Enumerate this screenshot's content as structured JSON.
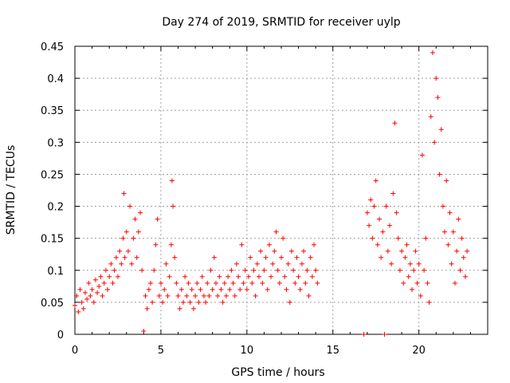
{
  "chart_data": {
    "type": "scatter",
    "title": "Day 274 of 2019, SRMTID for receiver uylp",
    "xlabel": "GPS time / hours",
    "ylabel": "SRMTID / TECUs",
    "xlim": [
      0,
      24
    ],
    "ylim": [
      0,
      0.45
    ],
    "grid": true,
    "marker": "plus",
    "marker_color": "#ff0000",
    "xticks": [
      0,
      5,
      10,
      15,
      20
    ],
    "yticks": [
      0,
      0.05,
      0.1,
      0.15,
      0.2,
      0.25,
      0.3,
      0.35,
      0.4,
      0.45
    ],
    "x_tick_labels": [
      "0",
      "5",
      "10",
      "15",
      "20"
    ],
    "y_tick_labels": [
      "0",
      "0.05",
      "0.1",
      "0.15",
      "0.2",
      "0.25",
      "0.3",
      "0.35",
      "0.4",
      "0.45"
    ],
    "series": [
      {
        "points": [
          [
            0.0,
            0.045
          ],
          [
            0.1,
            0.06
          ],
          [
            0.2,
            0.035
          ],
          [
            0.3,
            0.07
          ],
          [
            0.4,
            0.05
          ],
          [
            0.5,
            0.04
          ],
          [
            0.6,
            0.065
          ],
          [
            0.7,
            0.055
          ],
          [
            0.8,
            0.08
          ],
          [
            0.9,
            0.06
          ],
          [
            1.0,
            0.07
          ],
          [
            1.1,
            0.05
          ],
          [
            1.2,
            0.085
          ],
          [
            1.3,
            0.065
          ],
          [
            1.4,
            0.075
          ],
          [
            1.5,
            0.09
          ],
          [
            1.6,
            0.06
          ],
          [
            1.7,
            0.08
          ],
          [
            1.8,
            0.1
          ],
          [
            1.9,
            0.07
          ],
          [
            2.0,
            0.09
          ],
          [
            2.1,
            0.11
          ],
          [
            2.2,
            0.08
          ],
          [
            2.3,
            0.1
          ],
          [
            2.4,
            0.12
          ],
          [
            2.5,
            0.09
          ],
          [
            2.6,
            0.13
          ],
          [
            2.7,
            0.11
          ],
          [
            2.8,
            0.15
          ],
          [
            2.85,
            0.22
          ],
          [
            2.9,
            0.12
          ],
          [
            3.0,
            0.16
          ],
          [
            3.1,
            0.13
          ],
          [
            3.2,
            0.2
          ],
          [
            3.3,
            0.11
          ],
          [
            3.4,
            0.15
          ],
          [
            3.5,
            0.18
          ],
          [
            3.6,
            0.12
          ],
          [
            3.7,
            0.16
          ],
          [
            3.8,
            0.19
          ],
          [
            3.9,
            0.1
          ],
          [
            4.0,
            0.005
          ],
          [
            4.1,
            0.06
          ],
          [
            4.2,
            0.04
          ],
          [
            4.3,
            0.07
          ],
          [
            4.4,
            0.08
          ],
          [
            4.5,
            0.05
          ],
          [
            4.6,
            0.1
          ],
          [
            4.7,
            0.14
          ],
          [
            4.8,
            0.18
          ],
          [
            4.9,
            0.06
          ],
          [
            5.0,
            0.08
          ],
          [
            5.1,
            0.05
          ],
          [
            5.2,
            0.07
          ],
          [
            5.3,
            0.11
          ],
          [
            5.4,
            0.06
          ],
          [
            5.5,
            0.09
          ],
          [
            5.6,
            0.14
          ],
          [
            5.65,
            0.24
          ],
          [
            5.7,
            0.2
          ],
          [
            5.8,
            0.12
          ],
          [
            5.9,
            0.08
          ],
          [
            6.0,
            0.06
          ],
          [
            6.1,
            0.04
          ],
          [
            6.2,
            0.07
          ],
          [
            6.3,
            0.05
          ],
          [
            6.4,
            0.09
          ],
          [
            6.5,
            0.06
          ],
          [
            6.6,
            0.08
          ],
          [
            6.7,
            0.05
          ],
          [
            6.8,
            0.07
          ],
          [
            6.9,
            0.04
          ],
          [
            7.0,
            0.06
          ],
          [
            7.1,
            0.08
          ],
          [
            7.2,
            0.05
          ],
          [
            7.3,
            0.07
          ],
          [
            7.4,
            0.09
          ],
          [
            7.5,
            0.06
          ],
          [
            7.6,
            0.05
          ],
          [
            7.7,
            0.08
          ],
          [
            7.8,
            0.06
          ],
          [
            7.9,
            0.1
          ],
          [
            8.0,
            0.07
          ],
          [
            8.1,
            0.12
          ],
          [
            8.2,
            0.08
          ],
          [
            8.3,
            0.06
          ],
          [
            8.4,
            0.09
          ],
          [
            8.5,
            0.07
          ],
          [
            8.6,
            0.05
          ],
          [
            8.7,
            0.08
          ],
          [
            8.8,
            0.06
          ],
          [
            8.9,
            0.09
          ],
          [
            9.0,
            0.07
          ],
          [
            9.1,
            0.1
          ],
          [
            9.2,
            0.08
          ],
          [
            9.3,
            0.06
          ],
          [
            9.4,
            0.11
          ],
          [
            9.5,
            0.09
          ],
          [
            9.6,
            0.07
          ],
          [
            9.7,
            0.14
          ],
          [
            9.8,
            0.08
          ],
          [
            9.9,
            0.1
          ],
          [
            10.0,
            0.07
          ],
          [
            10.1,
            0.09
          ],
          [
            10.2,
            0.12
          ],
          [
            10.3,
            0.08
          ],
          [
            10.4,
            0.1
          ],
          [
            10.5,
            0.06
          ],
          [
            10.6,
            0.11
          ],
          [
            10.7,
            0.09
          ],
          [
            10.8,
            0.13
          ],
          [
            10.9,
            0.08
          ],
          [
            11.0,
            0.1
          ],
          [
            11.1,
            0.12
          ],
          [
            11.2,
            0.07
          ],
          [
            11.3,
            0.14
          ],
          [
            11.4,
            0.09
          ],
          [
            11.5,
            0.11
          ],
          [
            11.6,
            0.13
          ],
          [
            11.7,
            0.16
          ],
          [
            11.8,
            0.1
          ],
          [
            11.9,
            0.08
          ],
          [
            12.0,
            0.12
          ],
          [
            12.1,
            0.15
          ],
          [
            12.2,
            0.09
          ],
          [
            12.3,
            0.07
          ],
          [
            12.4,
            0.11
          ],
          [
            12.5,
            0.05
          ],
          [
            12.6,
            0.13
          ],
          [
            12.7,
            0.1
          ],
          [
            12.8,
            0.08
          ],
          [
            12.9,
            0.12
          ],
          [
            13.0,
            0.09
          ],
          [
            13.1,
            0.07
          ],
          [
            13.2,
            0.11
          ],
          [
            13.3,
            0.13
          ],
          [
            13.4,
            0.08
          ],
          [
            13.5,
            0.1
          ],
          [
            13.6,
            0.06
          ],
          [
            13.7,
            0.12
          ],
          [
            13.8,
            0.09
          ],
          [
            13.9,
            0.14
          ],
          [
            14.0,
            0.1
          ],
          [
            14.1,
            0.08
          ],
          [
            16.8,
            0.0
          ],
          [
            17.0,
            0.19
          ],
          [
            17.1,
            0.17
          ],
          [
            17.2,
            0.21
          ],
          [
            17.3,
            0.15
          ],
          [
            17.4,
            0.2
          ],
          [
            17.5,
            0.24
          ],
          [
            17.6,
            0.14
          ],
          [
            17.7,
            0.18
          ],
          [
            17.8,
            0.12
          ],
          [
            17.9,
            0.16
          ],
          [
            18.0,
            0.0
          ],
          [
            18.1,
            0.2
          ],
          [
            18.2,
            0.13
          ],
          [
            18.3,
            0.17
          ],
          [
            18.4,
            0.11
          ],
          [
            18.5,
            0.22
          ],
          [
            18.6,
            0.33
          ],
          [
            18.7,
            0.19
          ],
          [
            18.8,
            0.15
          ],
          [
            18.9,
            0.1
          ],
          [
            19.0,
            0.13
          ],
          [
            19.1,
            0.08
          ],
          [
            19.2,
            0.12
          ],
          [
            19.3,
            0.14
          ],
          [
            19.4,
            0.09
          ],
          [
            19.5,
            0.11
          ],
          [
            19.6,
            0.07
          ],
          [
            19.7,
            0.1
          ],
          [
            19.8,
            0.13
          ],
          [
            19.9,
            0.08
          ],
          [
            20.0,
            0.11
          ],
          [
            20.1,
            0.06
          ],
          [
            20.2,
            0.28
          ],
          [
            20.3,
            0.1
          ],
          [
            20.4,
            0.15
          ],
          [
            20.5,
            0.08
          ],
          [
            20.6,
            0.05
          ],
          [
            20.7,
            0.34
          ],
          [
            20.8,
            0.44
          ],
          [
            20.9,
            0.3
          ],
          [
            21.0,
            0.4
          ],
          [
            21.1,
            0.37
          ],
          [
            21.2,
            0.25
          ],
          [
            21.3,
            0.32
          ],
          [
            21.4,
            0.2
          ],
          [
            21.5,
            0.16
          ],
          [
            21.6,
            0.24
          ],
          [
            21.7,
            0.14
          ],
          [
            21.8,
            0.19
          ],
          [
            21.9,
            0.11
          ],
          [
            22.0,
            0.16
          ],
          [
            22.1,
            0.08
          ],
          [
            22.2,
            0.13
          ],
          [
            22.3,
            0.18
          ],
          [
            22.4,
            0.1
          ],
          [
            22.5,
            0.15
          ],
          [
            22.6,
            0.12
          ],
          [
            22.7,
            0.09
          ],
          [
            22.8,
            0.13
          ]
        ]
      }
    ]
  }
}
